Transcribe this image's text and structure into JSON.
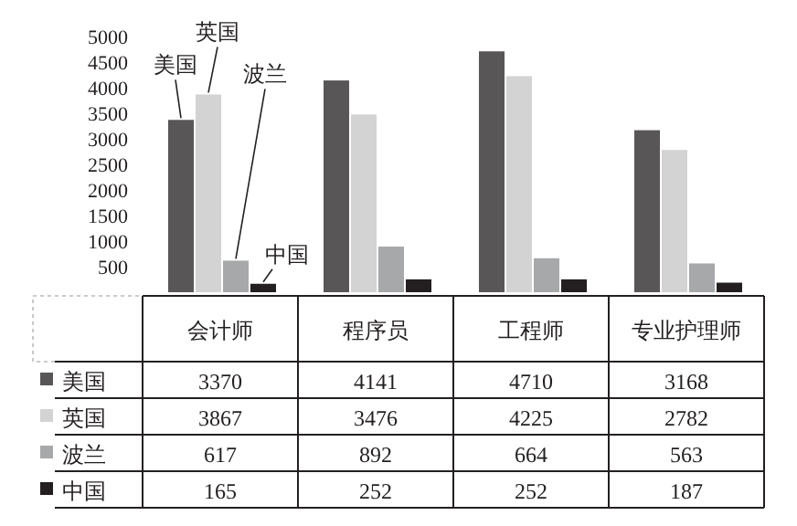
{
  "chart_data": {
    "type": "bar",
    "categories": [
      "会计师",
      "程序员",
      "工程师",
      "专业护理师"
    ],
    "series": [
      {
        "name": "美国",
        "color": "#595657",
        "values": [
          3370,
          4141,
          4710,
          3168
        ]
      },
      {
        "name": "英国",
        "color": "#d3d3d3",
        "values": [
          3867,
          3476,
          4225,
          2782
        ]
      },
      {
        "name": "波兰",
        "color": "#a7a8aa",
        "values": [
          617,
          892,
          664,
          563
        ]
      },
      {
        "name": "中国",
        "color": "#231f20",
        "values": [
          165,
          252,
          252,
          187
        ]
      }
    ],
    "ylim": [
      0,
      5000
    ],
    "yticks": [
      500,
      1000,
      1500,
      2000,
      2500,
      3000,
      3500,
      4000,
      4500,
      5000
    ],
    "data_labels": true,
    "legend": "bottom left"
  }
}
